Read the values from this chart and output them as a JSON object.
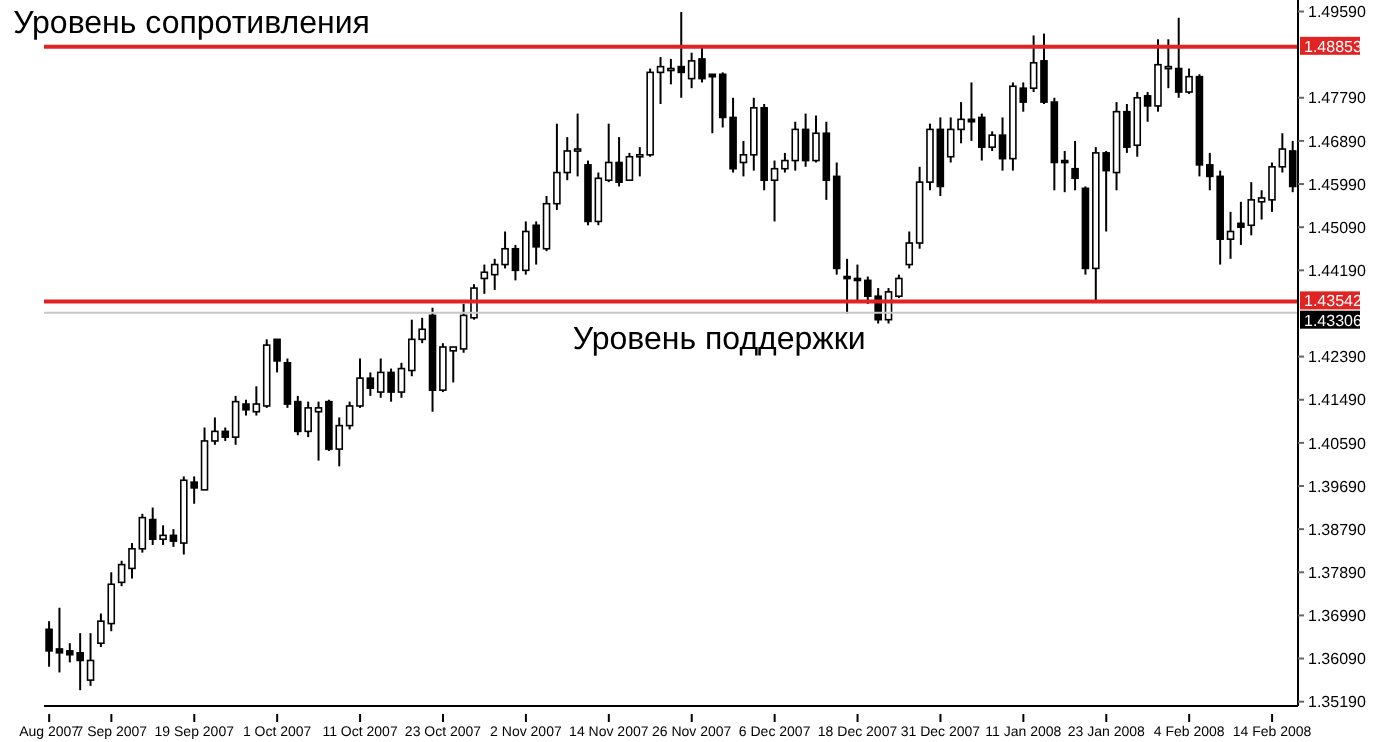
{
  "chart_data": {
    "type": "candlestick",
    "categories": [
      "Aug 2007",
      null,
      null,
      null,
      null,
      null,
      "7 Sep 2007",
      null,
      null,
      null,
      null,
      null,
      null,
      null,
      "19 Sep 2007",
      null,
      null,
      null,
      null,
      null,
      null,
      null,
      "1 Oct 2007",
      null,
      null,
      null,
      null,
      null,
      null,
      null,
      "11 Oct 2007",
      null,
      null,
      null,
      null,
      null,
      null,
      null,
      "23 Oct 2007",
      null,
      null,
      null,
      null,
      null,
      null,
      null,
      "2 Nov 2007",
      null,
      null,
      null,
      null,
      null,
      null,
      null,
      "14 Nov 2007",
      null,
      null,
      null,
      null,
      null,
      null,
      null,
      "26 Nov 2007",
      null,
      null,
      null,
      null,
      null,
      null,
      null,
      "6 Dec 2007",
      null,
      null,
      null,
      null,
      null,
      null,
      null,
      "18 Dec 2007",
      null,
      null,
      null,
      null,
      null,
      null,
      null,
      "31 Dec 2007",
      null,
      null,
      null,
      null,
      null,
      null,
      null,
      "11 Jan 2008",
      null,
      null,
      null,
      null,
      null,
      null,
      null,
      "23 Jan 2008",
      null,
      null,
      null,
      null,
      null,
      null,
      null,
      "4 Feb 2008",
      null,
      null,
      null,
      null,
      null,
      null,
      null,
      "14 Feb 2008",
      null,
      null
    ],
    "ohlc": [
      [
        1.367,
        1.3687,
        1.3592,
        1.3625
      ],
      [
        1.3629,
        1.3715,
        1.358,
        1.3621
      ],
      [
        1.3625,
        1.3641,
        1.3601,
        1.3617
      ],
      [
        1.3621,
        1.3662,
        1.3543,
        1.3605
      ],
      [
        1.3564,
        1.3662,
        1.3552,
        1.3605
      ],
      [
        1.3641,
        1.3703,
        1.3633,
        1.3687
      ],
      [
        1.3682,
        1.3789,
        1.3666,
        1.3764
      ],
      [
        1.3768,
        1.3813,
        1.376,
        1.3805
      ],
      [
        1.3797,
        1.385,
        1.3776,
        1.3838
      ],
      [
        1.3838,
        1.3911,
        1.383,
        1.3903
      ],
      [
        1.3899,
        1.3924,
        1.3846,
        1.3858
      ],
      [
        1.3858,
        1.3887,
        1.3846,
        1.3866
      ],
      [
        1.3866,
        1.3879,
        1.3842,
        1.3854
      ],
      [
        1.385,
        1.3989,
        1.3826,
        1.3981
      ],
      [
        1.3977,
        1.3989,
        1.3932,
        1.3965
      ],
      [
        1.3961,
        1.4091,
        1.3961,
        1.4063
      ],
      [
        1.4063,
        1.4112,
        1.4055,
        1.4083
      ],
      [
        1.4083,
        1.4091,
        1.4063,
        1.4071
      ],
      [
        1.4071,
        1.4157,
        1.4055,
        1.4145
      ],
      [
        1.414,
        1.4149,
        1.4116,
        1.4128
      ],
      [
        1.4124,
        1.4177,
        1.4116,
        1.414
      ],
      [
        1.4136,
        1.4275,
        1.4132,
        1.4263
      ],
      [
        1.4275,
        1.4275,
        1.4206,
        1.423
      ],
      [
        1.4226,
        1.4235,
        1.4132,
        1.414
      ],
      [
        1.4145,
        1.4157,
        1.4075,
        1.4083
      ],
      [
        1.4083,
        1.4145,
        1.4071,
        1.4132
      ],
      [
        1.4124,
        1.4145,
        1.4022,
        1.4132
      ],
      [
        1.4145,
        1.4149,
        1.4042,
        1.4046
      ],
      [
        1.4046,
        1.4112,
        1.401,
        1.4095
      ],
      [
        1.4095,
        1.4145,
        1.4087,
        1.4136
      ],
      [
        1.4136,
        1.4235,
        1.4132,
        1.4194
      ],
      [
        1.4194,
        1.4206,
        1.4157,
        1.4173
      ],
      [
        1.4165,
        1.4235,
        1.4153,
        1.4206
      ],
      [
        1.4206,
        1.4214,
        1.4145,
        1.4165
      ],
      [
        1.4165,
        1.4226,
        1.4153,
        1.4214
      ],
      [
        1.421,
        1.4316,
        1.4198,
        1.4275
      ],
      [
        1.4275,
        1.432,
        1.4267,
        1.4296
      ],
      [
        1.4325,
        1.4341,
        1.4124,
        1.4169
      ],
      [
        1.4169,
        1.4267,
        1.4165,
        1.4259
      ],
      [
        1.4251,
        1.4259,
        1.4185,
        1.4259
      ],
      [
        1.4255,
        1.4349,
        1.4247,
        1.4325
      ],
      [
        1.432,
        1.439,
        1.4316,
        1.4382
      ],
      [
        1.4402,
        1.4431,
        1.437,
        1.4415
      ],
      [
        1.441,
        1.4443,
        1.4378,
        1.4431
      ],
      [
        1.4431,
        1.45,
        1.4423,
        1.4464
      ],
      [
        1.4464,
        1.4472,
        1.4398,
        1.4419
      ],
      [
        1.4419,
        1.4521,
        1.441,
        1.45
      ],
      [
        1.4513,
        1.4521,
        1.4431,
        1.4468
      ],
      [
        1.4464,
        1.4574,
        1.4459,
        1.4558
      ],
      [
        1.4558,
        1.4725,
        1.4545,
        1.4623
      ],
      [
        1.4623,
        1.4697,
        1.4607,
        1.4668
      ],
      [
        1.4668,
        1.4746,
        1.4615,
        1.4672
      ],
      [
        1.4639,
        1.4648,
        1.4513,
        1.4521
      ],
      [
        1.4521,
        1.4623,
        1.4513,
        1.4611
      ],
      [
        1.4607,
        1.4725,
        1.4603,
        1.4644
      ],
      [
        1.4644,
        1.4697,
        1.4594,
        1.4603
      ],
      [
        1.4607,
        1.4664,
        1.4607,
        1.4656
      ],
      [
        1.4656,
        1.4676,
        1.4615,
        1.466
      ],
      [
        1.466,
        1.484,
        1.4656,
        1.4832
      ],
      [
        1.4832,
        1.4864,
        1.4766,
        1.4844
      ],
      [
        1.4836,
        1.486,
        1.4807,
        1.484
      ],
      [
        1.4844,
        1.4958,
        1.4779,
        1.4832
      ],
      [
        1.4819,
        1.4873,
        1.4799,
        1.4856
      ],
      [
        1.486,
        1.4889,
        1.4811,
        1.4819
      ],
      [
        1.4828,
        1.4828,
        1.4705,
        1.4823
      ],
      [
        1.4828,
        1.4832,
        1.4717,
        1.4738
      ],
      [
        1.4738,
        1.4779,
        1.4623,
        1.4631
      ],
      [
        1.4644,
        1.4689,
        1.4615,
        1.466
      ],
      [
        1.466,
        1.4779,
        1.4627,
        1.4758
      ],
      [
        1.4758,
        1.4766,
        1.4586,
        1.4607
      ],
      [
        1.4607,
        1.4648,
        1.4521,
        1.4631
      ],
      [
        1.4631,
        1.4664,
        1.4623,
        1.4648
      ],
      [
        1.4648,
        1.4729,
        1.4627,
        1.4713
      ],
      [
        1.4713,
        1.4746,
        1.4635,
        1.4648
      ],
      [
        1.4648,
        1.4742,
        1.4644,
        1.4705
      ],
      [
        1.4705,
        1.4729,
        1.4566,
        1.4607
      ],
      [
        1.4615,
        1.4644,
        1.441,
        1.4423
      ],
      [
        1.4406,
        1.4443,
        1.4329,
        1.4402
      ],
      [
        1.4402,
        1.4431,
        1.4357,
        1.4398
      ],
      [
        1.4398,
        1.4406,
        1.4349,
        1.4365
      ],
      [
        1.4365,
        1.4382,
        1.4308,
        1.4316
      ],
      [
        1.4316,
        1.4382,
        1.4308,
        1.4374
      ],
      [
        1.4365,
        1.441,
        1.4361,
        1.4402
      ],
      [
        1.4431,
        1.45,
        1.4423,
        1.4476
      ],
      [
        1.4476,
        1.4635,
        1.4464,
        1.4603
      ],
      [
        1.4603,
        1.4725,
        1.4586,
        1.4713
      ],
      [
        1.4713,
        1.4738,
        1.4574,
        1.4594
      ],
      [
        1.4656,
        1.4738,
        1.4644,
        1.4713
      ],
      [
        1.4713,
        1.477,
        1.4684,
        1.4734
      ],
      [
        1.4734,
        1.4811,
        1.4689,
        1.4729
      ],
      [
        1.4738,
        1.4746,
        1.4648,
        1.4676
      ],
      [
        1.4676,
        1.4709,
        1.4668,
        1.4701
      ],
      [
        1.4701,
        1.4738,
        1.4627,
        1.4652
      ],
      [
        1.4652,
        1.4811,
        1.4627,
        1.4803
      ],
      [
        1.4799,
        1.4811,
        1.475,
        1.477
      ],
      [
        1.4799,
        1.4909,
        1.4791,
        1.4852
      ],
      [
        1.4856,
        1.4913,
        1.4766,
        1.477
      ],
      [
        1.477,
        1.4779,
        1.4586,
        1.4644
      ],
      [
        1.4648,
        1.4668,
        1.4582,
        1.4644
      ],
      [
        1.4631,
        1.4689,
        1.4586,
        1.4611
      ],
      [
        1.459,
        1.4594,
        1.441,
        1.4423
      ],
      [
        1.4423,
        1.4676,
        1.4357,
        1.4664
      ],
      [
        1.4664,
        1.4668,
        1.45,
        1.4627
      ],
      [
        1.4623,
        1.477,
        1.4586,
        1.475
      ],
      [
        1.475,
        1.4766,
        1.4664,
        1.4676
      ],
      [
        1.468,
        1.4791,
        1.4656,
        1.4779
      ],
      [
        1.4783,
        1.4791,
        1.4729,
        1.4762
      ],
      [
        1.4762,
        1.4901,
        1.475,
        1.4848
      ],
      [
        1.484,
        1.4901,
        1.4799,
        1.4844
      ],
      [
        1.484,
        1.4946,
        1.4779,
        1.4791
      ],
      [
        1.4791,
        1.484,
        1.4787,
        1.4823
      ],
      [
        1.4823,
        1.4828,
        1.4615,
        1.4639
      ],
      [
        1.4639,
        1.4664,
        1.4586,
        1.4615
      ],
      [
        1.4615,
        1.4627,
        1.4431,
        1.4484
      ],
      [
        1.4484,
        1.4541,
        1.4443,
        1.45
      ],
      [
        1.4517,
        1.4562,
        1.4472,
        1.4509
      ],
      [
        1.4513,
        1.4603,
        1.4492,
        1.4566
      ],
      [
        1.4562,
        1.4586,
        1.4525,
        1.457
      ],
      [
        1.4566,
        1.4644,
        1.4541,
        1.4635
      ],
      [
        1.4635,
        1.4705,
        1.4623,
        1.4672
      ],
      [
        1.4668,
        1.4689,
        1.4582,
        1.4594
      ]
    ],
    "ylim": [
      1.351,
      1.4983
    ],
    "yticks": [
      {
        "value": 1.4959,
        "label": "1.49590"
      },
      {
        "value": 1.4779,
        "label": "1.47790"
      },
      {
        "value": 1.4689,
        "label": "1.46890"
      },
      {
        "value": 1.4599,
        "label": "1.45990"
      },
      {
        "value": 1.4509,
        "label": "1.45090"
      },
      {
        "value": 1.4419,
        "label": "1.44190"
      },
      {
        "value": 1.4239,
        "label": "1.42390"
      },
      {
        "value": 1.4149,
        "label": "1.41490"
      },
      {
        "value": 1.4059,
        "label": "1.40590"
      },
      {
        "value": 1.3969,
        "label": "1.39690"
      },
      {
        "value": 1.3879,
        "label": "1.38790"
      },
      {
        "value": 1.3789,
        "label": "1.37890"
      },
      {
        "value": 1.3699,
        "label": "1.36990"
      },
      {
        "value": 1.3609,
        "label": "1.36090"
      },
      {
        "value": 1.3519,
        "label": "1.35190"
      }
    ],
    "ref_lines": [
      {
        "axis": "y",
        "value": 1.48853,
        "label": "1.48853",
        "color": "#e02424"
      },
      {
        "axis": "y",
        "value": 1.43542,
        "label": "1.43542",
        "color": "#e02424"
      },
      {
        "axis": "y",
        "value": 1.43306,
        "label": "1.43306",
        "color": "#c8c8c8"
      }
    ],
    "annotations": [
      {
        "text": "Уровень сопротивления",
        "x": "Aug 2007",
        "y": 1.48853
      },
      {
        "text": "Уровень поддержки",
        "x": "14 Nov 2007",
        "y": 1.43542
      }
    ],
    "grid": false,
    "legend": false
  }
}
